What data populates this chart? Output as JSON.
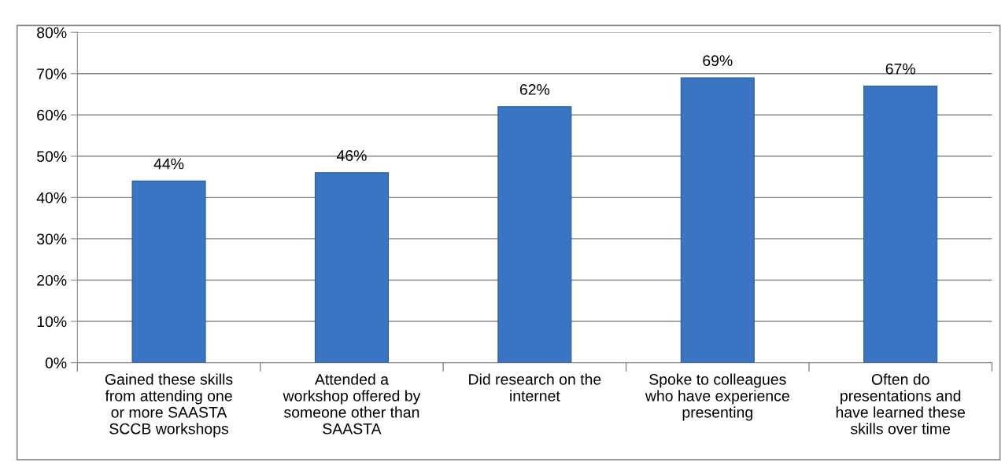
{
  "chart_data": {
    "type": "bar",
    "categories": [
      "Gained these skills\nfrom attending one\nor more SAASTA\nSCCB workshops",
      "Attended a\nworkshop offered by\nsomeone other than\nSAASTA",
      "Did research on the\ninternet",
      "Spoke to colleagues\nwho have experience\npresenting",
      "Often do\npresentations and\nhave learned these\nskills over time"
    ],
    "values": [
      44,
      46,
      62,
      69,
      67
    ],
    "value_labels": [
      "44%",
      "46%",
      "62%",
      "69%",
      "67%"
    ],
    "color": "#3a75c4",
    "ylim": [
      0,
      80
    ],
    "yticks": [
      {
        "value": 0,
        "label": "0%"
      },
      {
        "value": 10,
        "label": "10%"
      },
      {
        "value": 20,
        "label": "20%"
      },
      {
        "value": 30,
        "label": "30%"
      },
      {
        "value": 40,
        "label": "40%"
      },
      {
        "value": 50,
        "label": "50%"
      },
      {
        "value": 60,
        "label": "60%"
      },
      {
        "value": 70,
        "label": "70%"
      },
      {
        "value": 80,
        "label": "80%"
      }
    ],
    "grid": "y"
  }
}
